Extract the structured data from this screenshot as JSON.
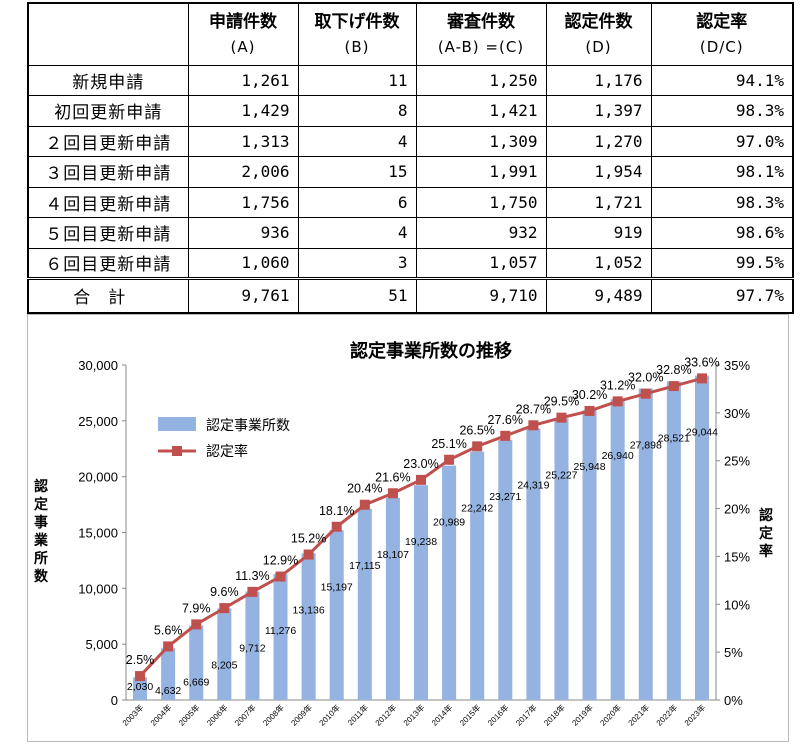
{
  "table": {
    "headers": [
      {
        "main": "",
        "sub": ""
      },
      {
        "main": "申請件数",
        "sub": "(A)"
      },
      {
        "main": "取下げ件数",
        "sub": "(B)"
      },
      {
        "main": "審査件数",
        "sub": "(A-B) =(C)"
      },
      {
        "main": "認定件数",
        "sub": "(D)"
      },
      {
        "main": "認定率",
        "sub": "(D/C)"
      }
    ],
    "rows": [
      {
        "label": "新規申請",
        "a": "1,261",
        "b": "11",
        "c": "1,250",
        "d": "1,176",
        "rate": "94.1%"
      },
      {
        "label": "初回更新申請",
        "a": "1,429",
        "b": "8",
        "c": "1,421",
        "d": "1,397",
        "rate": "98.3%"
      },
      {
        "label": "２回目更新申請",
        "a": "1,313",
        "b": "4",
        "c": "1,309",
        "d": "1,270",
        "rate": "97.0%"
      },
      {
        "label": "３回目更新申請",
        "a": "2,006",
        "b": "15",
        "c": "1,991",
        "d": "1,954",
        "rate": "98.1%"
      },
      {
        "label": "４回目更新申請",
        "a": "1,756",
        "b": "6",
        "c": "1,750",
        "d": "1,721",
        "rate": "98.3%"
      },
      {
        "label": "５回目更新申請",
        "a": "936",
        "b": "4",
        "c": "932",
        "d": "919",
        "rate": "98.6%"
      },
      {
        "label": "６回目更新申請",
        "a": "1,060",
        "b": "3",
        "c": "1,057",
        "d": "1,052",
        "rate": "99.5%"
      }
    ],
    "total": {
      "label": "合計",
      "a": "9,761",
      "b": "51",
      "c": "9,710",
      "d": "9,489",
      "rate": "97.7%"
    }
  },
  "chart_data": {
    "type": "bar",
    "title": "認定事業所数の推移",
    "ylabel": "認定事業所数",
    "y2label": "認定率",
    "ylim": [
      0,
      30000
    ],
    "y2lim": [
      0,
      35
    ],
    "yticks": [
      0,
      5000,
      10000,
      15000,
      20000,
      25000,
      30000
    ],
    "y2ticks": [
      0,
      5,
      10,
      15,
      20,
      25,
      30,
      35
    ],
    "categories": [
      "2003年",
      "2004年",
      "2005年",
      "2006年",
      "2007年",
      "2008年",
      "2009年",
      "2010年",
      "2011年",
      "2012年",
      "2013年",
      "2014年",
      "2015年",
      "2016年",
      "2017年",
      "2018年",
      "2019年",
      "2020年",
      "2021年",
      "2022年",
      "2023年"
    ],
    "series": [
      {
        "name": "認定事業所数",
        "type": "bar",
        "axis": "left",
        "color": "#95b3e0",
        "values": [
          2030,
          4632,
          6669,
          8205,
          9712,
          11276,
          13136,
          15197,
          17115,
          18107,
          19238,
          20989,
          22242,
          23271,
          24319,
          25227,
          25948,
          26940,
          27898,
          28521,
          29044
        ]
      },
      {
        "name": "認定率",
        "type": "line",
        "axis": "right",
        "color": "#c0504d",
        "values": [
          2.5,
          5.6,
          7.9,
          9.6,
          11.3,
          12.9,
          15.2,
          18.1,
          20.4,
          21.6,
          23.0,
          25.1,
          26.5,
          27.6,
          28.7,
          29.5,
          30.2,
          31.2,
          32.0,
          32.8,
          33.6
        ]
      }
    ],
    "legend": "top-left"
  }
}
